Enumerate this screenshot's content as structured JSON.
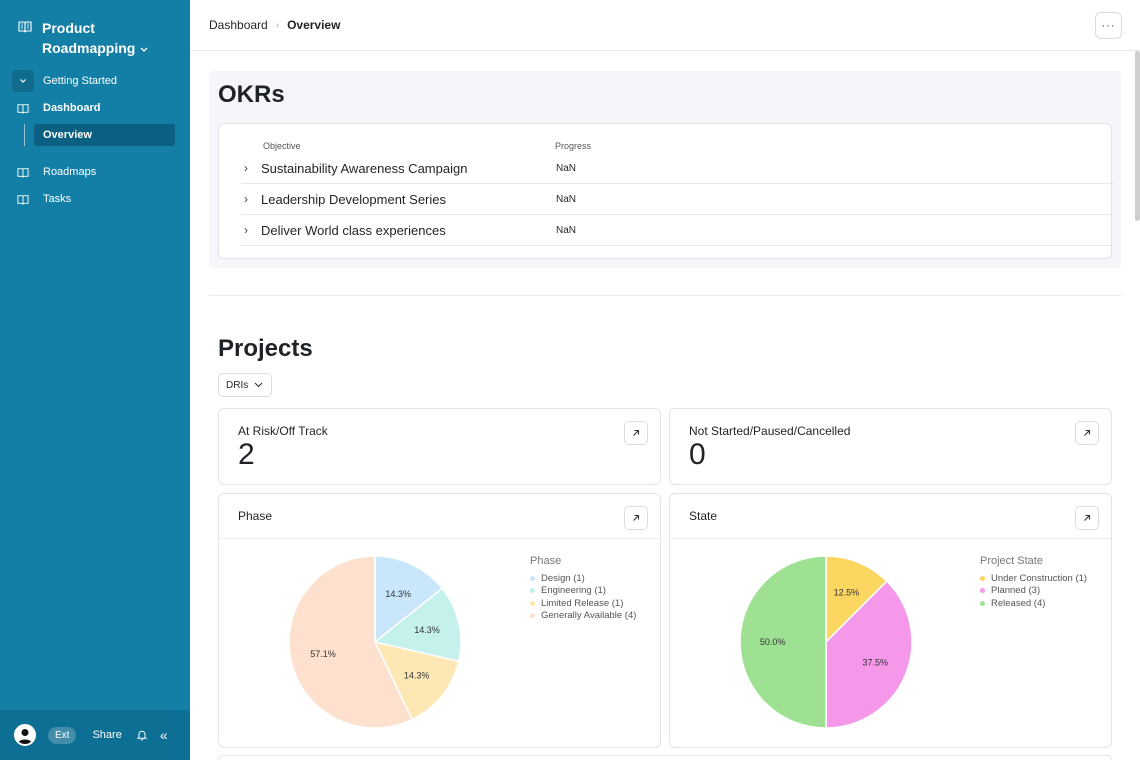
{
  "sidebar": {
    "workspace_line1": "Product",
    "workspace_line2": "Roadmapping",
    "items": [
      {
        "label": "Getting Started",
        "icon": "chevron-down-icon"
      },
      {
        "label": "Dashboard",
        "icon": "book-icon"
      },
      {
        "label": "Overview"
      },
      {
        "label": "Roadmaps",
        "icon": "book-icon"
      },
      {
        "label": "Tasks",
        "icon": "book-icon"
      }
    ],
    "footer": {
      "ext": "Ext",
      "share": "Share"
    }
  },
  "breadcrumb": {
    "parent": "Dashboard",
    "current": "Overview"
  },
  "okrs": {
    "title": "OKRs",
    "headers": {
      "objective": "Objective",
      "progress": "Progress"
    },
    "rows": [
      {
        "objective": "Sustainability Awareness Campaign",
        "progress": "NaN"
      },
      {
        "objective": "Leadership Development Series",
        "progress": "NaN"
      },
      {
        "objective": "Deliver World class experiences",
        "progress": "NaN"
      }
    ]
  },
  "projects": {
    "title": "Projects",
    "filter_label": "DRIs",
    "stat_cards": [
      {
        "label": "At Risk/Off Track",
        "value": "2"
      },
      {
        "label": "Not Started/Paused/Cancelled",
        "value": "0"
      }
    ]
  },
  "chart_data": [
    {
      "type": "pie",
      "title": "Phase",
      "legend_title": "Phase",
      "slices": [
        {
          "label": "Design (1)",
          "value": 14.3,
          "pct_label": "14.3%",
          "color": "#c9e6fb"
        },
        {
          "label": "Engineering (1)",
          "value": 14.3,
          "pct_label": "14.3%",
          "color": "#c4f1ec"
        },
        {
          "label": "Limited Release (1)",
          "value": 14.3,
          "pct_label": "14.3%",
          "color": "#fde7b5"
        },
        {
          "label": "Generally Available (4)",
          "value": 57.1,
          "pct_label": "57.1%",
          "color": "#fde0cd"
        }
      ]
    },
    {
      "type": "pie",
      "title": "State",
      "legend_title": "Project State",
      "slices": [
        {
          "label": "Under Construction (1)",
          "value": 12.5,
          "pct_label": "12.5%",
          "color": "#fbd661"
        },
        {
          "label": "Planned (3)",
          "value": 37.5,
          "pct_label": "37.5%",
          "color": "#f598ea"
        },
        {
          "label": "Released (4)",
          "value": 50.0,
          "pct_label": "50.0%",
          "color": "#9ee193"
        }
      ]
    }
  ]
}
